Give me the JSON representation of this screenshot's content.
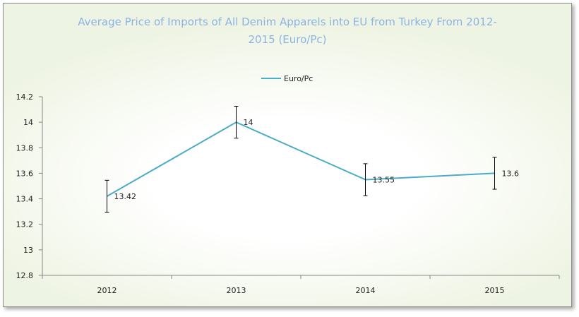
{
  "chart_data": {
    "type": "line",
    "title": "Average Price of Imports of All Denim Apparels into EU from Turkey From 2012-2015 (Euro/Pc)",
    "title_lines": [
      "Average Price of Imports of All Denim Apparels into EU from Turkey From 2012-",
      "2015 (Euro/Pc)"
    ],
    "categories": [
      "2012",
      "2013",
      "2014",
      "2015"
    ],
    "series": [
      {
        "name": "Euro/Pc",
        "values": [
          13.42,
          14,
          13.55,
          13.6
        ],
        "data_labels": [
          "13.42",
          "14",
          "13.55",
          "13.6"
        ],
        "error": 0.125,
        "color": "#4bacc6"
      }
    ],
    "ylim": [
      12.8,
      14.2
    ],
    "y_ticks": [
      "12.8",
      "13",
      "13.2",
      "13.4",
      "13.6",
      "13.8",
      "14",
      "14.2"
    ],
    "y_tick_values": [
      12.8,
      13.0,
      13.2,
      13.4,
      13.6,
      13.8,
      14.0,
      14.2
    ],
    "legend": "top-center",
    "grid": false,
    "title_color": "#8db3e2"
  }
}
